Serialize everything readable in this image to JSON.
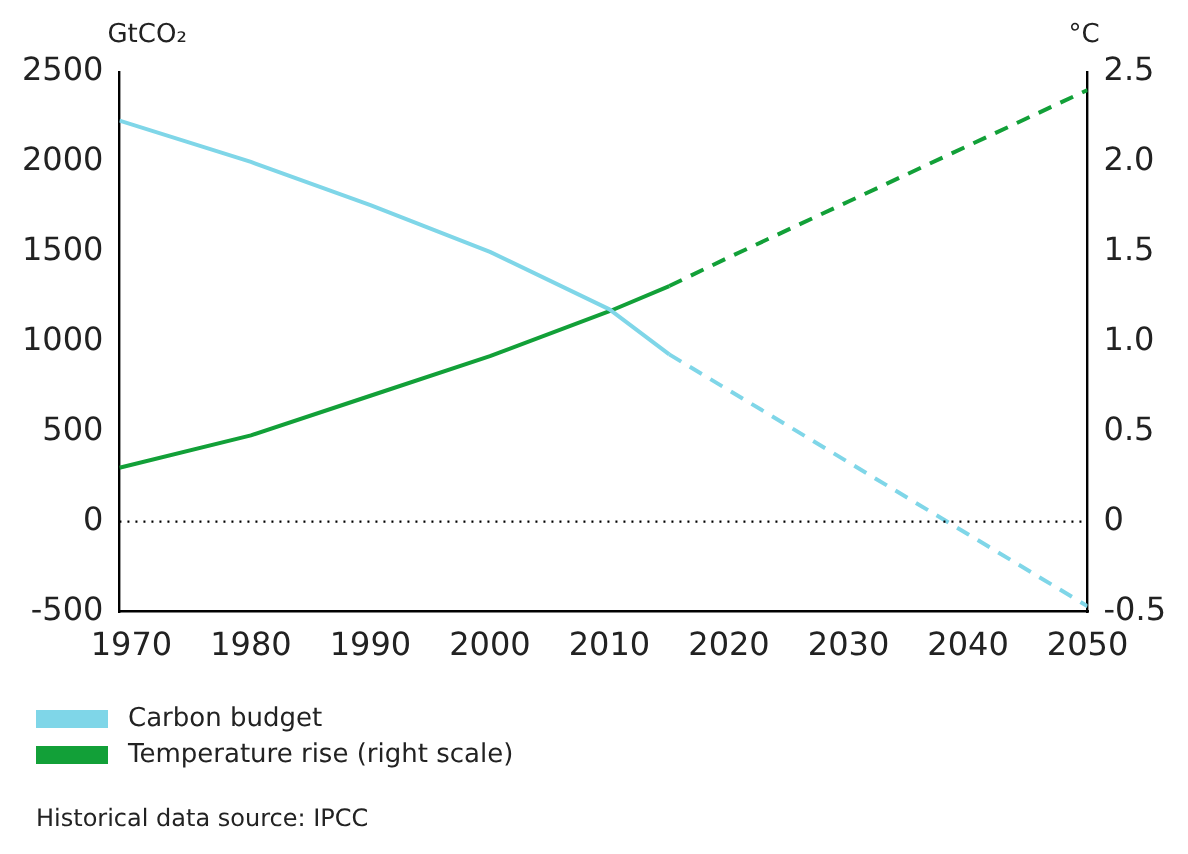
{
  "chart_data": {
    "type": "line",
    "ylabel": "GtCO₂",
    "y2label": "°C",
    "xlim": [
      1969,
      2050
    ],
    "xticks": [
      1970,
      1980,
      1990,
      2000,
      2010,
      2020,
      2030,
      2040,
      2050
    ],
    "ylim": [
      -500,
      2500
    ],
    "yticks": [
      -500,
      0,
      500,
      1000,
      1500,
      2000,
      2500
    ],
    "y2lim": [
      -0.5,
      2.5
    ],
    "y2ticks": [
      {
        "value": -0.5,
        "label": "-0.5"
      },
      {
        "value": 0,
        "label": "0"
      },
      {
        "value": 0.5,
        "label": "0.5"
      },
      {
        "value": 1,
        "label": "1.0"
      },
      {
        "value": 1.5,
        "label": "1.5"
      },
      {
        "value": 2,
        "label": "2.0"
      },
      {
        "value": 2.5,
        "label": "2.5"
      }
    ],
    "grid": false,
    "legend": "bottom",
    "marker": "none",
    "series": [
      {
        "name": "Carbon budget",
        "color": "#7fd6e8",
        "line_style": "solid",
        "x": [
          1969,
          1980,
          1990,
          2000,
          2010,
          2015
        ],
        "values": [
          2230,
          2000,
          1760,
          1500,
          1180,
          930
        ]
      },
      {
        "color": "#7fd6e8",
        "line_style": "dashed",
        "x": [
          2015,
          2020,
          2030,
          2040,
          2050
        ],
        "values": [
          930,
          730,
          330,
          -70,
          -470
        ]
      },
      {
        "name": "Temperature rise (right scale)",
        "color": "#12a038",
        "axis": "y2",
        "line_style": "solid",
        "x": [
          1969,
          1980,
          1990,
          2000,
          2010,
          2015
        ],
        "values": [
          0.3,
          0.48,
          0.7,
          0.92,
          1.17,
          1.31
        ]
      },
      {
        "color": "#12a038",
        "axis": "y2",
        "line_style": "dashed",
        "x": [
          2015,
          2020,
          2030,
          2040,
          2050
        ],
        "values": [
          1.31,
          1.47,
          1.78,
          2.09,
          2.4
        ]
      }
    ],
    "ref_lines": [
      {
        "axis": "y",
        "value": 0,
        "color": "#000000",
        "line_style": "dotted"
      }
    ],
    "annotations": [
      "Historical data source: IPCC"
    ]
  }
}
